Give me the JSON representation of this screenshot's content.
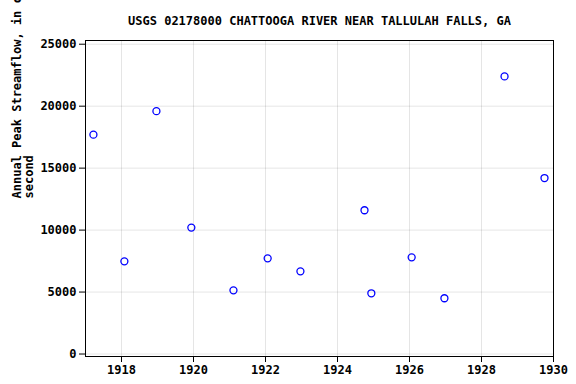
{
  "chart_data": {
    "type": "scatter",
    "title": "USGS 02178000 CHATTOOGA RIVER NEAR TALLULAH FALLS, GA",
    "y_label": "Annual Peak Streamflow, in cubic feet per second",
    "x": [
      1917.22,
      1918.08,
      1918.97,
      1919.94,
      1921.11,
      1922.06,
      1922.97,
      1924.75,
      1924.94,
      1926.06,
      1926.97,
      1928.64,
      1929.75
    ],
    "values": [
      17700,
      7480,
      19600,
      10200,
      5140,
      7720,
      6670,
      11600,
      4900,
      7800,
      4500,
      22400,
      14200
    ],
    "color": "#0000ff",
    "marker": "open circle",
    "xlim": [
      1917,
      1930
    ],
    "xticks": [
      1918,
      1920,
      1922,
      1924,
      1926,
      1928,
      1930
    ],
    "ylim": [
      -200,
      25300
    ],
    "yticks": [
      0,
      5000,
      10000,
      15000,
      20000,
      25000
    ],
    "grid": true
  }
}
